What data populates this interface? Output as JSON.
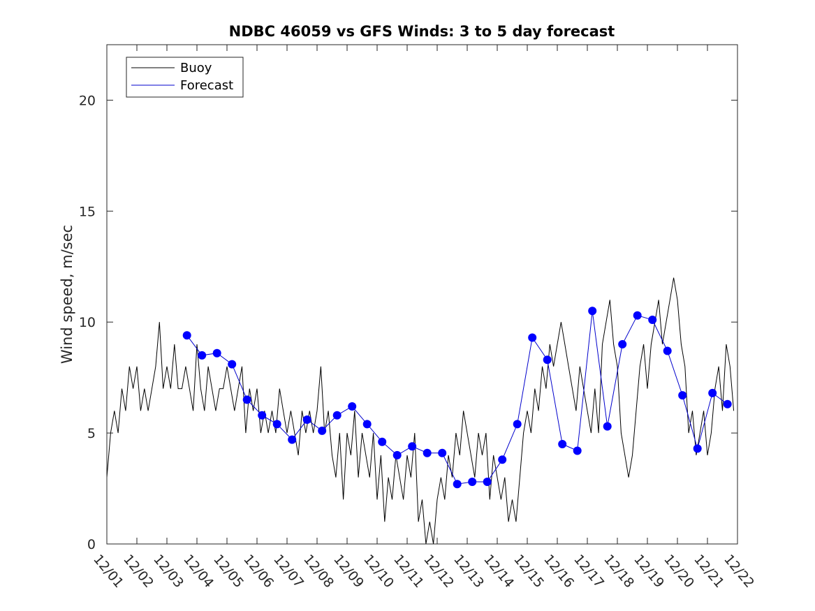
{
  "chart_data": {
    "type": "line",
    "title": "NDBC 46059 vs GFS Winds: 3 to 5 day forecast",
    "xlabel": "",
    "ylabel": "Wind speed, m/sec",
    "xlim": [
      "12/01",
      "12/22"
    ],
    "ylim": [
      0,
      22.5
    ],
    "x_tick_labels": [
      "12/01",
      "12/02",
      "12/03",
      "12/04",
      "12/05",
      "12/06",
      "12/07",
      "12/08",
      "12/09",
      "12/10",
      "12/11",
      "12/12",
      "12/13",
      "12/14",
      "12/15",
      "12/16",
      "12/17",
      "12/18",
      "12/19",
      "12/20",
      "12/21",
      "12/22"
    ],
    "y_ticks": [
      0,
      5,
      10,
      15,
      20
    ],
    "legend": {
      "position": "top-left",
      "entries": [
        "Buoy",
        "Forecast"
      ]
    },
    "colors": {
      "buoy": "#000000",
      "forecast": "#0000cc",
      "markers": "#0000ff"
    },
    "series": [
      {
        "name": "Buoy",
        "x": [
          "12/01 00:00",
          "12/01 03:00",
          "12/01 06:00",
          "12/01 09:00",
          "12/01 12:00",
          "12/01 15:00",
          "12/01 18:00",
          "12/01 21:00",
          "12/02 00:00",
          "12/02 03:00",
          "12/02 06:00",
          "12/02 09:00",
          "12/02 12:00",
          "12/02 15:00",
          "12/02 18:00",
          "12/02 21:00",
          "12/03 00:00",
          "12/03 03:00",
          "12/03 06:00",
          "12/03 09:00",
          "12/03 12:00",
          "12/03 15:00",
          "12/03 18:00",
          "12/03 21:00",
          "12/04 00:00",
          "12/04 03:00",
          "12/04 06:00",
          "12/04 09:00",
          "12/04 12:00",
          "12/04 15:00",
          "12/04 18:00",
          "12/04 21:00",
          "12/05 00:00",
          "12/05 03:00",
          "12/05 06:00",
          "12/05 09:00",
          "12/05 12:00",
          "12/05 15:00",
          "12/05 18:00",
          "12/05 21:00",
          "12/06 00:00",
          "12/06 03:00",
          "12/06 06:00",
          "12/06 09:00",
          "12/06 12:00",
          "12/06 15:00",
          "12/06 18:00",
          "12/06 21:00",
          "12/07 00:00",
          "12/07 03:00",
          "12/07 06:00",
          "12/07 09:00",
          "12/07 12:00",
          "12/07 15:00",
          "12/07 18:00",
          "12/07 21:00",
          "12/08 00:00",
          "12/08 03:00",
          "12/08 06:00",
          "12/08 09:00",
          "12/08 12:00",
          "12/08 15:00",
          "12/08 18:00",
          "12/08 21:00",
          "12/09 00:00",
          "12/09 03:00",
          "12/09 06:00",
          "12/09 09:00",
          "12/09 12:00",
          "12/09 15:00",
          "12/09 18:00",
          "12/09 21:00",
          "12/10 00:00",
          "12/10 03:00",
          "12/10 06:00",
          "12/10 09:00",
          "12/10 12:00",
          "12/10 15:00",
          "12/10 18:00",
          "12/10 21:00",
          "12/11 00:00",
          "12/11 03:00",
          "12/11 06:00",
          "12/11 09:00",
          "12/11 12:00",
          "12/11 15:00",
          "12/11 18:00",
          "12/11 21:00",
          "12/12 00:00",
          "12/12 03:00",
          "12/12 06:00",
          "12/12 09:00",
          "12/12 12:00",
          "12/12 15:00",
          "12/12 18:00",
          "12/12 21:00",
          "12/13 00:00",
          "12/13 03:00",
          "12/13 06:00",
          "12/13 09:00",
          "12/13 12:00",
          "12/13 15:00",
          "12/13 18:00",
          "12/13 21:00",
          "12/14 00:00",
          "12/14 03:00",
          "12/14 06:00",
          "12/14 09:00",
          "12/14 12:00",
          "12/14 15:00",
          "12/14 18:00",
          "12/14 21:00",
          "12/15 00:00",
          "12/15 03:00",
          "12/15 06:00",
          "12/15 09:00",
          "12/15 12:00",
          "12/15 15:00",
          "12/15 18:00",
          "12/15 21:00",
          "12/16 00:00",
          "12/16 03:00",
          "12/16 06:00",
          "12/16 09:00",
          "12/16 12:00",
          "12/16 15:00",
          "12/16 18:00",
          "12/16 21:00",
          "12/17 00:00",
          "12/17 03:00",
          "12/17 06:00",
          "12/17 09:00",
          "12/17 12:00",
          "12/17 15:00",
          "12/17 18:00",
          "12/17 21:00",
          "12/18 00:00",
          "12/18 03:00",
          "12/18 06:00",
          "12/18 09:00",
          "12/18 12:00",
          "12/18 15:00",
          "12/18 18:00",
          "12/18 21:00",
          "12/19 00:00",
          "12/19 03:00",
          "12/19 06:00",
          "12/19 09:00",
          "12/19 12:00",
          "12/19 15:00",
          "12/19 18:00",
          "12/19 21:00",
          "12/20 00:00",
          "12/20 03:00",
          "12/20 06:00",
          "12/20 09:00",
          "12/20 12:00",
          "12/20 15:00",
          "12/20 18:00",
          "12/20 21:00",
          "12/21 00:00",
          "12/21 03:00",
          "12/21 06:00",
          "12/21 09:00",
          "12/21 12:00",
          "12/21 15:00",
          "12/21 18:00",
          "12/21 21:00"
        ],
        "values": [
          3,
          5,
          6,
          5,
          7,
          6,
          8,
          7,
          8,
          6,
          7,
          6,
          7,
          8,
          10,
          7,
          8,
          7,
          9,
          7,
          7,
          8,
          7,
          6,
          9,
          7,
          6,
          8,
          7,
          6,
          7,
          7,
          8,
          7,
          6,
          7,
          8,
          5,
          7,
          6,
          7,
          5,
          6,
          5,
          6,
          5,
          7,
          6,
          5,
          6,
          5,
          4,
          6,
          5,
          6,
          5,
          6,
          8,
          5,
          6,
          4,
          3,
          5,
          2,
          5,
          4,
          6,
          3,
          5,
          4,
          3,
          5,
          2,
          4,
          1,
          3,
          2,
          4,
          3,
          2,
          4,
          3,
          5,
          1,
          2,
          0,
          1,
          0,
          2,
          3,
          2,
          4,
          3,
          5,
          4,
          6,
          5,
          4,
          3,
          5,
          4,
          5,
          2,
          4,
          3,
          2,
          3,
          1,
          2,
          1,
          3,
          5,
          6,
          5,
          7,
          6,
          8,
          7,
          9,
          8,
          9,
          10,
          9,
          8,
          7,
          6,
          8,
          7,
          6,
          5,
          7,
          5,
          9,
          10,
          11,
          9,
          8,
          5,
          4,
          3,
          4,
          6,
          8,
          9,
          7,
          9,
          10,
          11,
          9,
          10,
          11,
          12,
          11,
          9,
          8,
          5,
          6,
          4,
          5,
          6,
          4,
          5,
          7,
          8,
          6,
          9,
          8,
          6
        ]
      },
      {
        "name": "Forecast",
        "x": [
          "12/03 16:00",
          "12/04 04:00",
          "12/04 16:00",
          "12/05 04:00",
          "12/05 16:00",
          "12/06 04:00",
          "12/06 16:00",
          "12/07 04:00",
          "12/07 16:00",
          "12/08 04:00",
          "12/08 16:00",
          "12/09 04:00",
          "12/09 16:00",
          "12/10 04:00",
          "12/10 16:00",
          "12/11 04:00",
          "12/11 16:00",
          "12/12 04:00",
          "12/12 16:00",
          "12/13 04:00",
          "12/13 16:00",
          "12/14 04:00",
          "12/14 16:00",
          "12/15 04:00",
          "12/15 16:00",
          "12/16 04:00",
          "12/16 16:00",
          "12/17 04:00",
          "12/17 16:00",
          "12/18 04:00",
          "12/18 16:00",
          "12/19 04:00",
          "12/19 16:00",
          "12/20 04:00",
          "12/20 16:00",
          "12/21 04:00",
          "12/21 16:00"
        ],
        "values": [
          9.4,
          8.5,
          8.6,
          8.1,
          6.5,
          5.8,
          5.4,
          4.7,
          5.6,
          5.1,
          5.8,
          6.2,
          5.4,
          4.6,
          4.0,
          4.4,
          4.1,
          4.1,
          2.7,
          2.8,
          2.8,
          3.8,
          5.4,
          9.3,
          8.3,
          4.5,
          4.2,
          10.5,
          5.3,
          9.0,
          10.3,
          10.1,
          8.7,
          6.7,
          4.3,
          6.8,
          6.3
        ]
      }
    ]
  }
}
